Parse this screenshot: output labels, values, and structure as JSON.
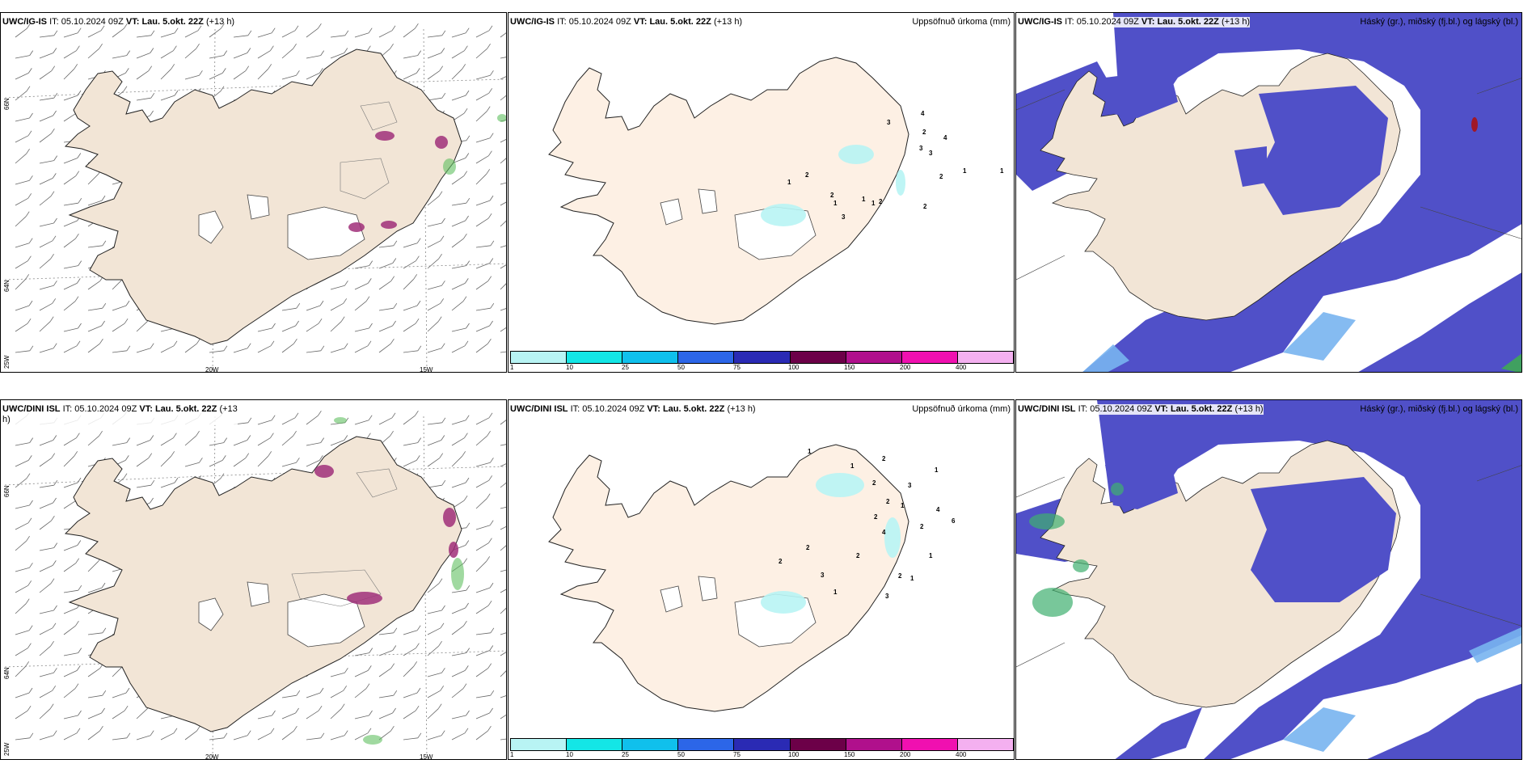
{
  "panels": [
    {
      "model": "UWC/IG-IS",
      "it_label": "IT:",
      "it_value": "05.10.2024 09Z",
      "vt_label": "VT:",
      "vt_value": "Lau. 5.okt. 22Z",
      "lead": "(+13 h)",
      "right_title": "",
      "type": "wind"
    },
    {
      "model": "UWC/IG-IS",
      "it_label": "IT:",
      "it_value": "05.10.2024 09Z",
      "vt_label": "VT:",
      "vt_value": "Lau. 5.okt. 22Z",
      "lead": "(+13 h)",
      "right_title": "Uppsöfnuð úrkoma (mm)",
      "type": "precip"
    },
    {
      "model": "UWC/IG-IS",
      "it_label": "IT:",
      "it_value": "05.10.2024 09Z",
      "vt_label": "VT:",
      "vt_value": "Lau. 5.okt. 22Z",
      "lead": "(+13 h)",
      "right_title": "Háský (gr.), miðský (fj.bl.) og lágský (bl.)",
      "type": "cloud"
    },
    {
      "model": "UWC/DINI ISL",
      "it_label": "IT:",
      "it_value": "05.10.2024 09Z",
      "vt_label": "VT:",
      "vt_value": "Lau. 5.okt. 22Z",
      "lead": "(+13",
      "lead2": "h)",
      "right_title": "",
      "type": "wind"
    },
    {
      "model": "UWC/DINI ISL",
      "it_label": "IT:",
      "it_value": "05.10.2024 09Z",
      "vt_label": "VT:",
      "vt_value": "Lau. 5.okt. 22Z",
      "lead": "(+13 h)",
      "right_title": "Uppsöfnuð úrkoma (mm)",
      "type": "precip"
    },
    {
      "model": "UWC/DINI ISL",
      "it_label": "IT:",
      "it_value": "05.10.2024 09Z",
      "vt_label": "VT:",
      "vt_value": "Lau. 5.okt. 22Z",
      "lead": "(+13 h)",
      "right_title": "Háský (gr.), miðský (fj.bl.) og lágský (bl.)",
      "type": "cloud"
    }
  ],
  "grid_labels": {
    "lat_66": "66N",
    "lat_64": "64N",
    "lon_25w": "25W",
    "lon_20w": "20W",
    "lon_15w": "15W"
  },
  "colorbar": {
    "ticks": [
      "1",
      "10",
      "25",
      "50",
      "75",
      "100",
      "150",
      "200",
      "400"
    ],
    "colors": [
      "#b8f4f4",
      "#14e6e6",
      "#10c0ec",
      "#2c66e8",
      "#2a2ab4",
      "#6c0048",
      "#b0108c",
      "#f010b0",
      "#f4b0f0"
    ]
  },
  "precip_labels_top": [
    "3",
    "4",
    "2",
    "4",
    "3",
    "3",
    "2",
    "1",
    "1",
    "1",
    "2",
    "2",
    "1",
    "3",
    "1",
    "1",
    "2",
    "2"
  ],
  "precip_labels_bottom": [
    "1",
    "1",
    "2",
    "2",
    "3",
    "1",
    "4",
    "2",
    "1",
    "2",
    "6",
    "2",
    "4",
    "1",
    "2",
    "2",
    "1",
    "2",
    "3",
    "2",
    "1",
    "3"
  ],
  "colors": {
    "land": "#f2e5d6",
    "land_precip": "#fdf0e4",
    "cloud_blue": "#5050c8",
    "cloud_light": "#78b4f0",
    "precip_cyan": "#b8f4f4"
  }
}
